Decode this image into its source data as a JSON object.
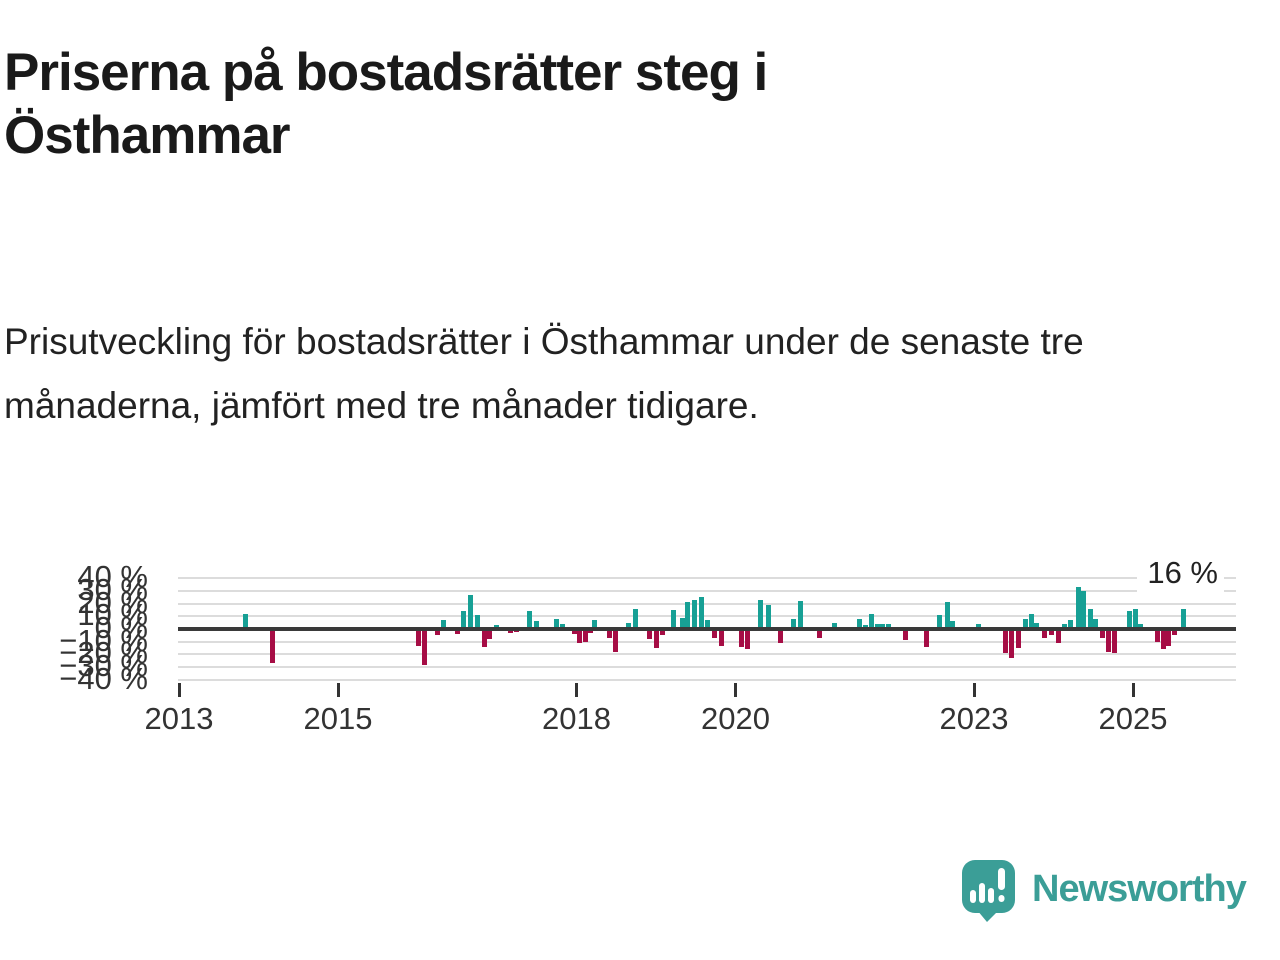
{
  "title": "Priserna på bostadsrätter steg i Östhammar",
  "subtitle": "Prisutveckling för bostadsrätter i Östhammar under de senaste tre månaderna, jämfört med tre månader tidigare.",
  "branding": {
    "name": "Newsworthy",
    "logo_icon": "speech-bubble-bar-chart-icon",
    "brand_color": "#3b9e97"
  },
  "colors": {
    "positive_bar": "#17a095",
    "negative_bar": "#a60d45",
    "zero_line": "#3a3a3a",
    "gridline": "#dcdcdc",
    "text": "#1a1a1a"
  },
  "chart_data": {
    "type": "bar",
    "title": "",
    "xlabel": "",
    "ylabel": "",
    "unit": "%",
    "grid": true,
    "ylim": [
      -40,
      40
    ],
    "ytick_step": 10,
    "yticks": [
      {
        "value": 40,
        "label": "40 %"
      },
      {
        "value": 30,
        "label": "30 %"
      },
      {
        "value": 20,
        "label": "20 %"
      },
      {
        "value": 10,
        "label": "10 %"
      },
      {
        "value": 0,
        "label": "0 %"
      },
      {
        "value": -10,
        "label": "−10 %"
      },
      {
        "value": -20,
        "label": "−20 %"
      },
      {
        "value": -30,
        "label": "−30 %"
      },
      {
        "value": -40,
        "label": "−40 %"
      }
    ],
    "xlim": [
      2012.99,
      2026.3
    ],
    "xticks": [
      {
        "year": 2013,
        "label": "2013"
      },
      {
        "year": 2015,
        "label": "2015"
      },
      {
        "year": 2018,
        "label": "2018"
      },
      {
        "year": 2020,
        "label": "2020"
      },
      {
        "year": 2023,
        "label": "2023"
      },
      {
        "year": 2025,
        "label": "2025"
      }
    ],
    "annotation": "16 %",
    "points": [
      [
        2013.84,
        12
      ],
      [
        2014.18,
        -27
      ],
      [
        2016.01,
        -13
      ],
      [
        2016.09,
        -28
      ],
      [
        2016.25,
        -5
      ],
      [
        2016.33,
        7
      ],
      [
        2016.5,
        -4
      ],
      [
        2016.58,
        14
      ],
      [
        2016.67,
        27
      ],
      [
        2016.75,
        11
      ],
      [
        2016.84,
        -14
      ],
      [
        2016.91,
        -8
      ],
      [
        2016.99,
        3
      ],
      [
        2017.17,
        -3
      ],
      [
        2017.25,
        -2
      ],
      [
        2017.41,
        14
      ],
      [
        2017.5,
        6
      ],
      [
        2017.75,
        8
      ],
      [
        2017.82,
        4
      ],
      [
        2017.97,
        -4
      ],
      [
        2018.04,
        -11
      ],
      [
        2018.11,
        -10
      ],
      [
        2018.18,
        -3
      ],
      [
        2018.23,
        7
      ],
      [
        2018.41,
        -7
      ],
      [
        2018.49,
        -18
      ],
      [
        2018.65,
        5
      ],
      [
        2018.74,
        16
      ],
      [
        2018.92,
        -8
      ],
      [
        2019.01,
        -15
      ],
      [
        2019.08,
        -5
      ],
      [
        2019.22,
        15
      ],
      [
        2019.33,
        9
      ],
      [
        2019.4,
        21
      ],
      [
        2019.48,
        23
      ],
      [
        2019.57,
        25
      ],
      [
        2019.65,
        7
      ],
      [
        2019.74,
        -7
      ],
      [
        2019.82,
        -13
      ],
      [
        2020.08,
        -14
      ],
      [
        2020.15,
        -16
      ],
      [
        2020.31,
        23
      ],
      [
        2020.41,
        19
      ],
      [
        2020.57,
        -11
      ],
      [
        2020.73,
        8
      ],
      [
        2020.82,
        22
      ],
      [
        2021.06,
        -7
      ],
      [
        2021.24,
        5
      ],
      [
        2021.56,
        8
      ],
      [
        2021.63,
        3
      ],
      [
        2021.71,
        12
      ],
      [
        2021.79,
        4
      ],
      [
        2021.85,
        4
      ],
      [
        2021.93,
        4
      ],
      [
        2022.14,
        -9
      ],
      [
        2022.4,
        -14
      ],
      [
        2022.57,
        11
      ],
      [
        2022.67,
        21
      ],
      [
        2022.73,
        6
      ],
      [
        2023.06,
        4
      ],
      [
        2023.4,
        -19
      ],
      [
        2023.47,
        -23
      ],
      [
        2023.56,
        -15
      ],
      [
        2023.65,
        8
      ],
      [
        2023.72,
        12
      ],
      [
        2023.79,
        5
      ],
      [
        2023.89,
        -7
      ],
      [
        2023.97,
        -5
      ],
      [
        2024.06,
        -11
      ],
      [
        2024.14,
        4
      ],
      [
        2024.21,
        7
      ],
      [
        2024.31,
        33
      ],
      [
        2024.38,
        30
      ],
      [
        2024.46,
        16
      ],
      [
        2024.53,
        8
      ],
      [
        2024.62,
        -7
      ],
      [
        2024.69,
        -18
      ],
      [
        2024.77,
        -19
      ],
      [
        2024.96,
        14
      ],
      [
        2025.03,
        16
      ],
      [
        2025.1,
        4
      ],
      [
        2025.31,
        -10
      ],
      [
        2025.38,
        -16
      ],
      [
        2025.45,
        -13
      ],
      [
        2025.52,
        -5
      ],
      [
        2025.64,
        16
      ]
    ]
  }
}
